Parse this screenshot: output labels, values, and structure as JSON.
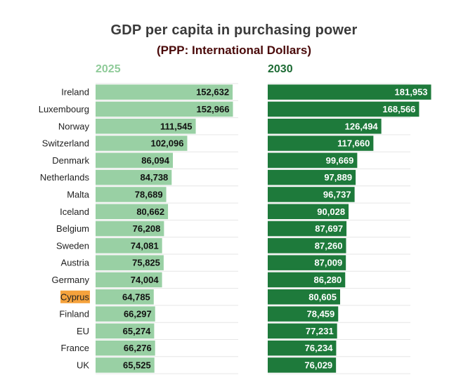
{
  "chart_data": {
    "type": "bar",
    "orientation": "horizontal",
    "title": "GDP per capita in purchasing power",
    "subtitle": "(PPP: International Dollars)",
    "categories": [
      "Ireland",
      "Luxembourg",
      "Norway",
      "Switzerland",
      "Denmark",
      "Netherlands",
      "Malta",
      "Iceland",
      "Belgium",
      "Sweden",
      "Austria",
      "Germany",
      "Cyprus",
      "Finland",
      "EU",
      "France",
      "UK"
    ],
    "highlight_category": "Cyprus",
    "series": [
      {
        "name": "2025",
        "color": "#99d0a4",
        "values": [
          152632,
          152966,
          111545,
          102096,
          86094,
          84738,
          78689,
          80662,
          76208,
          74081,
          75825,
          74004,
          64785,
          66297,
          65274,
          66276,
          65525
        ],
        "labels": [
          "152,632",
          "152,966",
          "111,545",
          "102,096",
          "86,094",
          "84,738",
          "78,689",
          "80,662",
          "76,208",
          "74,081",
          "75,825",
          "74,004",
          "64,785",
          "66,297",
          "65,274",
          "66,276",
          "65,525"
        ]
      },
      {
        "name": "2030",
        "color": "#1e7a3b",
        "values": [
          181953,
          168566,
          126494,
          117660,
          99669,
          97889,
          96737,
          90028,
          87697,
          87260,
          87009,
          86280,
          80605,
          78459,
          77231,
          76234,
          76029
        ],
        "labels": [
          "181,953",
          "168,566",
          "126,494",
          "117,660",
          "99,669",
          "97,889",
          "96,737",
          "90,028",
          "87,697",
          "87,260",
          "87,009",
          "86,280",
          "80,605",
          "78,459",
          "77,231",
          "76,234",
          "76,029"
        ]
      }
    ],
    "xlim": [
      0,
      200000
    ],
    "grid": true,
    "legend": "panel titles above each column"
  },
  "colors": {
    "label_2025": "#8fcb99",
    "label_2030": "#1d6b34",
    "highlight_bg": "#f5a23c",
    "grid": "#e6e6e6"
  }
}
